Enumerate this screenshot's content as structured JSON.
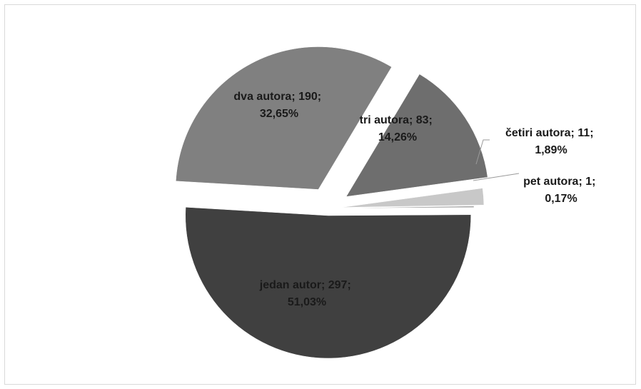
{
  "chart_data": {
    "type": "pie",
    "exploded": true,
    "slices": [
      {
        "name": "jedan autor",
        "value": 297,
        "percent": "51,03%",
        "label_line1": "jedan autor; 297;",
        "label_line2": "51,03%",
        "color": "#404040"
      },
      {
        "name": "dva autora",
        "value": 190,
        "percent": "32,65%",
        "label_line1": "dva autora; 190;",
        "label_line2": "32,65%",
        "color": "#808080"
      },
      {
        "name": "tri autora",
        "value": 83,
        "percent": "14,26%",
        "label_line1": "tri autora; 83;",
        "label_line2": "14,26%",
        "color": "#6e6e6e"
      },
      {
        "name": "četiri autora",
        "value": 11,
        "percent": "1,89%",
        "label_line1": "četiri autora; 11;",
        "label_line2": "1,89%",
        "color": "#c8c8c8"
      },
      {
        "name": "pet autora",
        "value": 1,
        "percent": "0,17%",
        "label_line1": "pet autora; 1;",
        "label_line2": "0,17%",
        "color": "#a6a6a6"
      }
    ],
    "title": "",
    "legend": "none"
  }
}
